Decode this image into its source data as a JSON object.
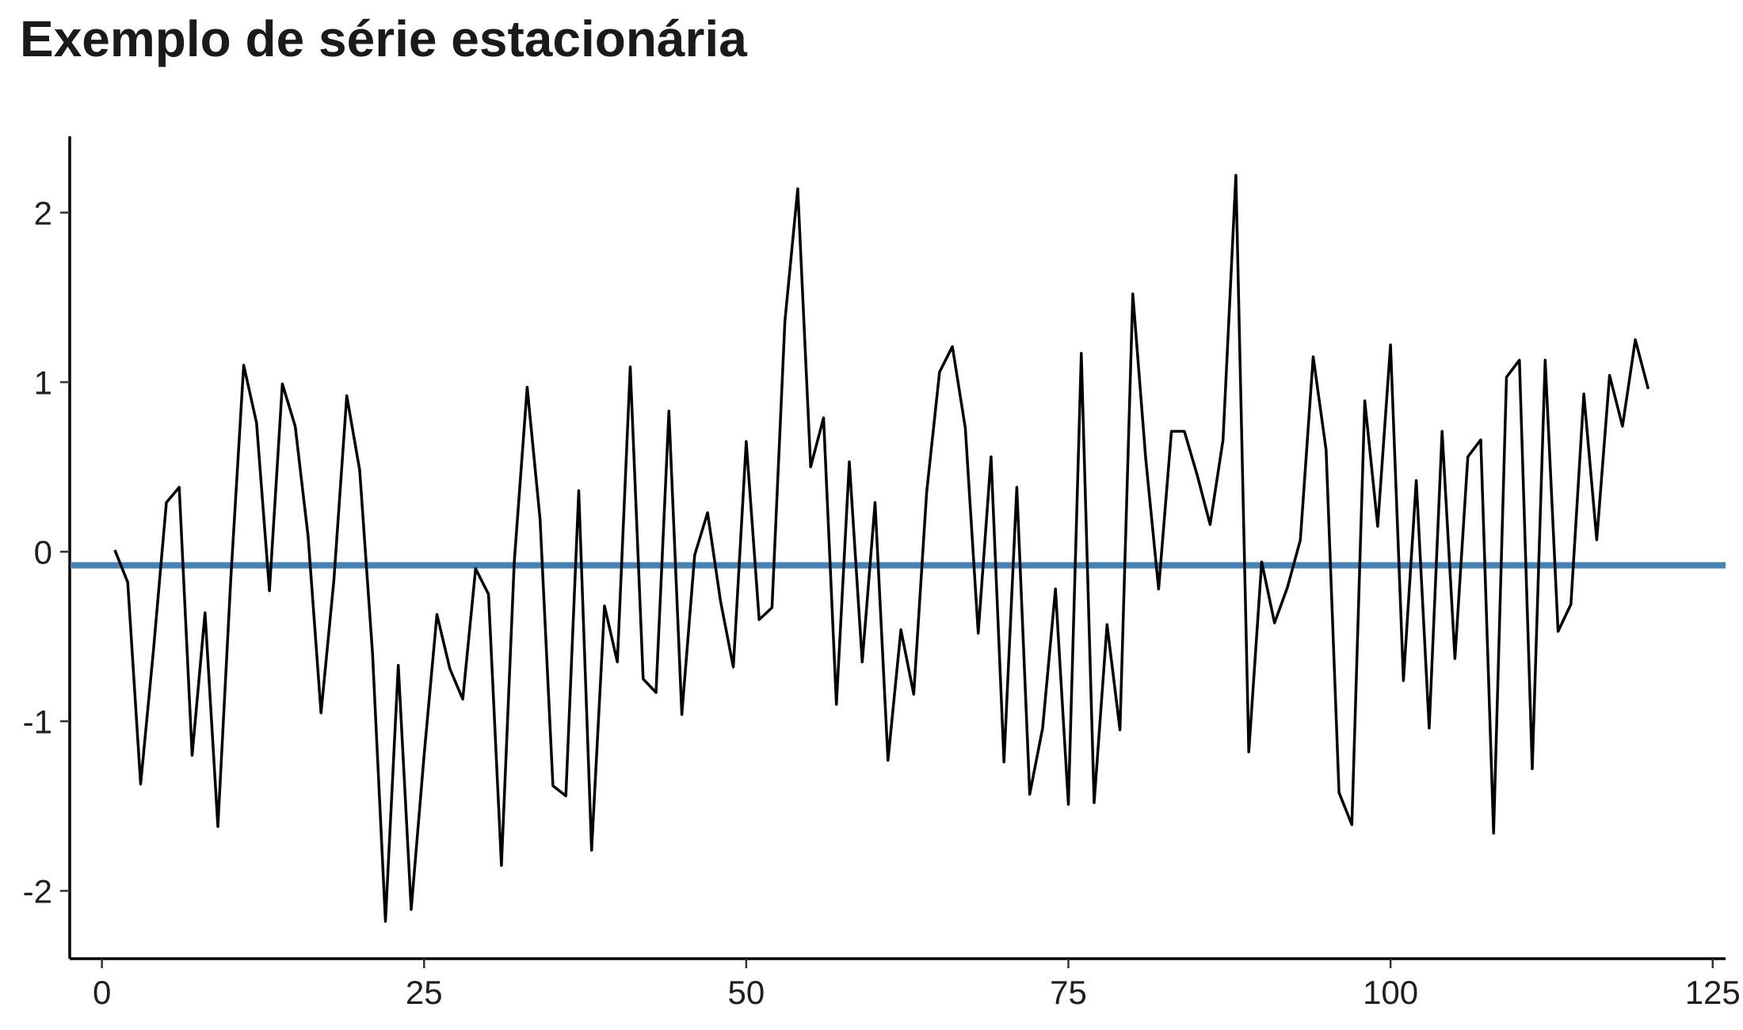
{
  "chart_data": {
    "type": "line",
    "title": "Exemplo de série estacionária",
    "xlabel": "",
    "ylabel": "",
    "xlim": [
      -2.5,
      126.0
    ],
    "ylim": [
      -2.4,
      2.45
    ],
    "x_ticks": [
      0,
      25,
      50,
      75,
      100,
      125
    ],
    "y_ticks": [
      -2,
      -1,
      0,
      1,
      2
    ],
    "grid": false,
    "legend": "none",
    "colors": {
      "line": "#000000",
      "mean_line": "#4682B4"
    },
    "mean": -0.08,
    "series": [
      {
        "x": [
          1,
          2,
          3,
          4,
          5,
          6,
          7,
          8,
          9,
          10,
          11,
          12,
          13,
          14,
          15,
          16,
          17,
          18,
          19,
          20,
          21,
          22,
          23,
          24,
          25,
          26,
          27,
          28,
          29,
          30,
          31,
          32,
          33,
          34,
          35,
          36,
          37,
          38,
          39,
          40,
          41,
          42,
          43,
          44,
          45,
          46,
          47,
          48,
          49,
          50,
          51,
          52,
          53,
          54,
          55,
          56,
          57,
          58,
          59,
          60,
          61,
          62,
          63,
          64,
          65,
          66,
          67,
          68,
          69,
          70,
          71,
          72,
          73,
          74,
          75,
          76,
          77,
          78,
          79,
          80,
          81,
          82,
          83,
          84,
          85,
          86,
          87,
          88,
          89,
          90,
          91,
          92,
          93,
          94,
          95,
          96,
          97,
          98,
          99,
          100,
          101,
          102,
          103,
          104,
          105,
          106,
          107,
          108,
          109,
          110,
          111,
          112,
          113,
          114,
          115,
          116,
          117,
          118,
          119,
          120
        ],
        "values": [
          0.01,
          -0.18,
          -1.37,
          -0.58,
          0.29,
          0.38,
          -1.2,
          -0.36,
          -1.62,
          -0.16,
          1.1,
          0.76,
          -0.23,
          0.99,
          0.74,
          0.09,
          -0.95,
          -0.17,
          0.92,
          0.48,
          -0.6,
          -2.18,
          -0.67,
          -2.11,
          -1.2,
          -0.37,
          -0.69,
          -0.87,
          -0.1,
          -0.25,
          -1.85,
          -0.06,
          0.97,
          0.19,
          -1.38,
          -1.44,
          0.36,
          -1.76,
          -0.32,
          -0.65,
          1.09,
          -0.75,
          -0.83,
          0.83,
          -0.96,
          -0.02,
          0.23,
          -0.29,
          -0.68,
          0.65,
          -0.4,
          -0.33,
          1.36,
          2.14,
          0.5,
          0.79,
          -0.9,
          0.53,
          -0.65,
          0.29,
          -1.23,
          -0.46,
          -0.84,
          0.35,
          1.06,
          1.21,
          0.73,
          -0.48,
          0.56,
          -1.24,
          0.38,
          -1.43,
          -1.04,
          -0.22,
          -1.49,
          1.17,
          -1.48,
          -0.43,
          -1.05,
          1.52,
          0.55,
          -0.22,
          0.71,
          0.71,
          0.45,
          0.16,
          0.66,
          2.22,
          -1.18,
          -0.06,
          -0.42,
          -0.21,
          0.07,
          1.15,
          0.6,
          -1.42,
          -1.61,
          0.89,
          0.15,
          1.22,
          -0.76,
          0.42,
          -1.04,
          0.71,
          -0.63,
          0.56,
          0.66,
          -1.66,
          1.03,
          1.13,
          -1.28,
          1.13,
          -0.47,
          -0.31,
          0.93,
          0.07,
          1.04,
          0.74,
          1.25,
          0.96
        ]
      }
    ]
  }
}
